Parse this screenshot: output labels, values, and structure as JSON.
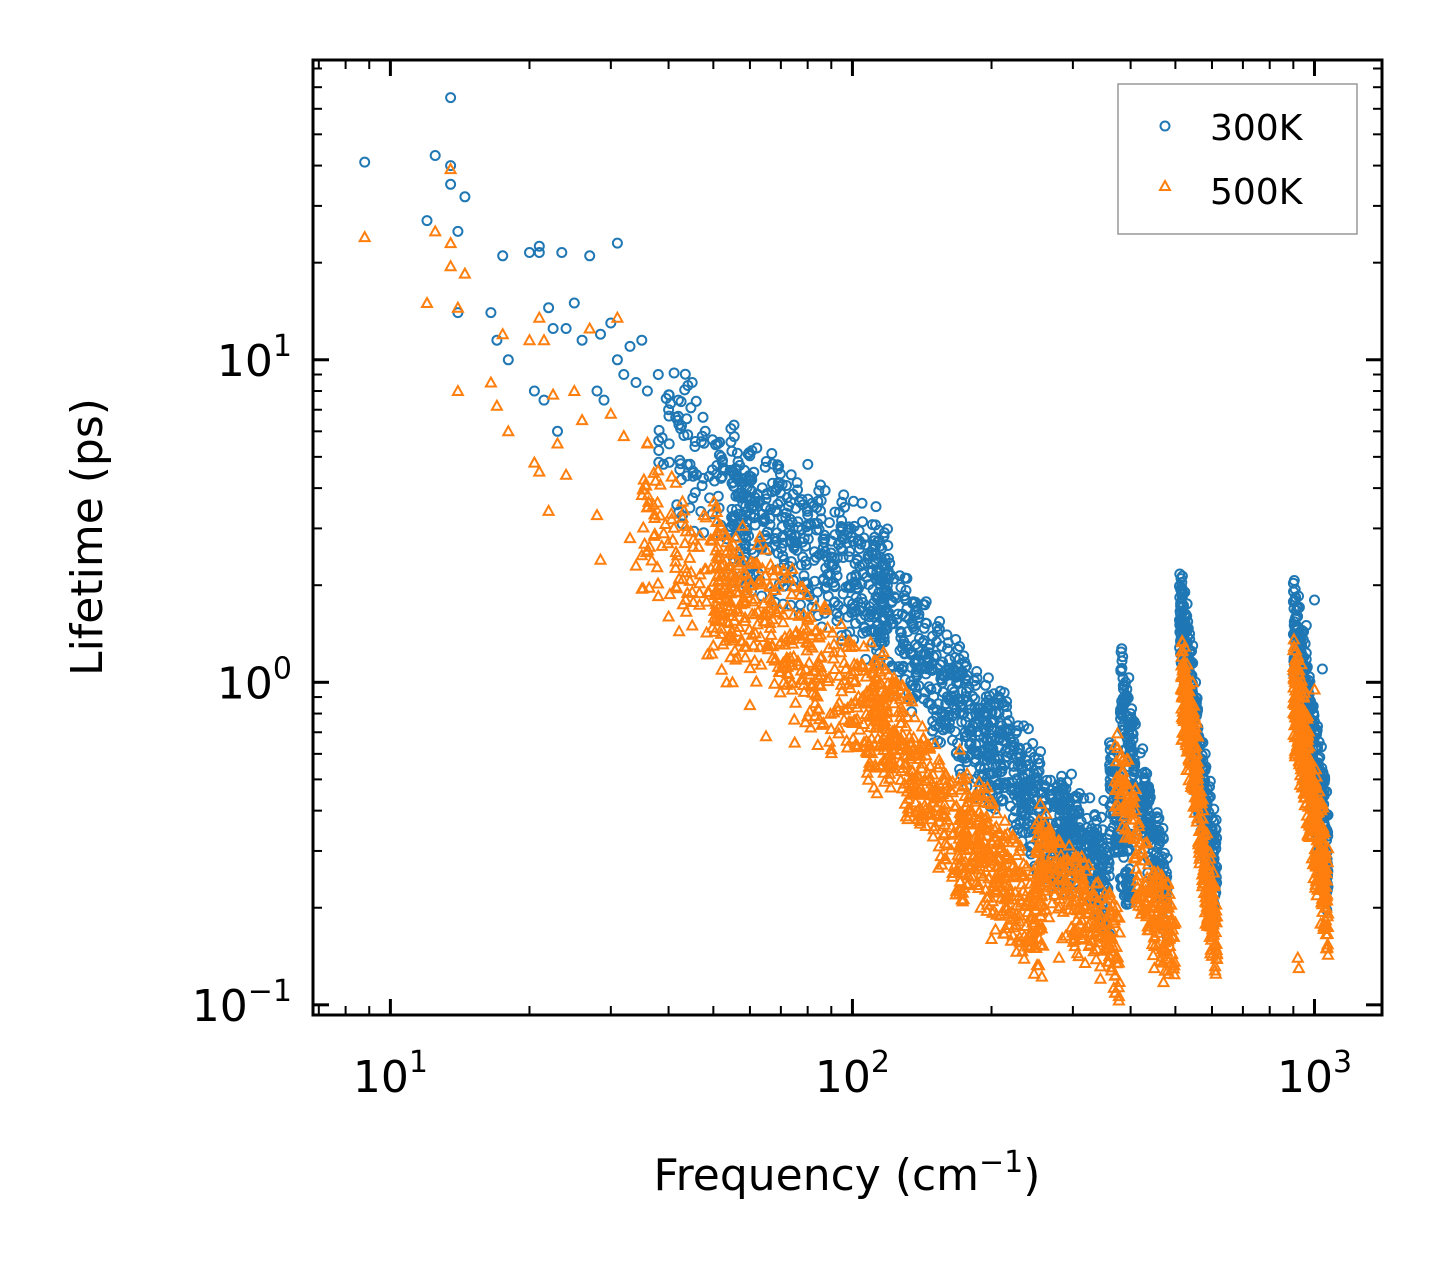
{
  "chart_data": {
    "type": "scatter",
    "title": "",
    "xlabel_text": "Frequency (cm",
    "xlabel_sup": "−1",
    "xlabel_close": ")",
    "ylabel": "Lifetime (ps)",
    "xscale": "log",
    "yscale": "log",
    "xlim": [
      6.8,
      1400
    ],
    "ylim": [
      0.093,
      85
    ],
    "x_ticks": [
      {
        "value": 10,
        "base": "10",
        "exp": "1"
      },
      {
        "value": 100,
        "base": "10",
        "exp": "2"
      },
      {
        "value": 1000,
        "base": "10",
        "exp": "3"
      }
    ],
    "y_ticks": [
      {
        "value": 0.1,
        "base": "10",
        "exp": "−1"
      },
      {
        "value": 1,
        "base": "10",
        "exp": "0"
      },
      {
        "value": 10,
        "base": "10",
        "exp": "1"
      }
    ],
    "legend_position": "top-right",
    "series": [
      {
        "name": "300K",
        "marker": "circle",
        "color": "#1f77b4",
        "points": [
          [
            8.8,
            41
          ],
          [
            12,
            27
          ],
          [
            12.5,
            43
          ],
          [
            13.5,
            65
          ],
          [
            13.5,
            40
          ],
          [
            13.5,
            35
          ],
          [
            14,
            25
          ],
          [
            14,
            14
          ],
          [
            14.5,
            32
          ],
          [
            16.5,
            14
          ],
          [
            17,
            11.5
          ],
          [
            17.5,
            21
          ],
          [
            18,
            10
          ],
          [
            20,
            21.5
          ],
          [
            20.5,
            8
          ],
          [
            21,
            22.5
          ],
          [
            21,
            21.5
          ],
          [
            21.5,
            7.5
          ],
          [
            22,
            14.5
          ],
          [
            22.5,
            12.5
          ],
          [
            23,
            6
          ],
          [
            23.5,
            21.5
          ],
          [
            24,
            12.5
          ],
          [
            25,
            15
          ],
          [
            26,
            11.5
          ],
          [
            27,
            21
          ],
          [
            28,
            8
          ],
          [
            28.5,
            12
          ],
          [
            29,
            7.5
          ],
          [
            30,
            13
          ],
          [
            31,
            23
          ],
          [
            31,
            10
          ],
          [
            32,
            9
          ],
          [
            33,
            11
          ],
          [
            34,
            8.5
          ],
          [
            35,
            11.5
          ],
          [
            36,
            8
          ],
          [
            38,
            9
          ],
          [
            40,
            7
          ],
          [
            42,
            7.5
          ],
          [
            45,
            8.5
          ],
          [
            48,
            6
          ],
          [
            52,
            5
          ],
          [
            55,
            4.5
          ],
          [
            60,
            4.2
          ],
          [
            65,
            3.7
          ],
          [
            80,
            3.3
          ],
          [
            95,
            2.8
          ],
          [
            110,
            2.2
          ],
          [
            130,
            1.6
          ],
          [
            150,
            1.2
          ],
          [
            170,
            1.0
          ],
          [
            200,
            0.75
          ],
          [
            230,
            0.6
          ],
          [
            260,
            0.48
          ],
          [
            290,
            0.36
          ],
          [
            320,
            0.33
          ],
          [
            350,
            0.43
          ],
          [
            390,
            1.0
          ],
          [
            400,
            0.8
          ],
          [
            430,
            0.5
          ],
          [
            470,
            0.33
          ],
          [
            530,
            1.75
          ],
          [
            545,
            1.3
          ],
          [
            580,
            0.6
          ],
          [
            600,
            0.38
          ],
          [
            920,
            1.3
          ],
          [
            960,
            1.5
          ],
          [
            1000,
            1.8
          ],
          [
            1040,
            1.1
          ]
        ],
        "bands": [
          [
            38,
            60,
            3.4,
            6.5,
            0.4,
            120
          ],
          [
            55,
            120,
            1.9,
            3.6,
            0.35,
            420
          ],
          [
            110,
            200,
            0.6,
            1.9,
            0.3,
            380
          ],
          [
            195,
            290,
            0.3,
            0.7,
            0.3,
            320
          ],
          [
            280,
            360,
            0.24,
            0.4,
            0.25,
            240
          ],
          [
            360,
            400,
            0.24,
            0.5,
            0.25,
            120
          ],
          [
            380,
            410,
            0.55,
            0.95,
            0.25,
            90
          ],
          [
            420,
            480,
            0.22,
            0.45,
            0.25,
            150
          ],
          [
            510,
            560,
            0.6,
            1.7,
            0.25,
            240
          ],
          [
            560,
            615,
            0.25,
            0.55,
            0.25,
            160
          ],
          [
            900,
            1070,
            0.28,
            1.5,
            0.3,
            420
          ]
        ]
      },
      {
        "name": "500K",
        "marker": "triangle",
        "color": "#ff7f0e",
        "points": [
          [
            8.8,
            24
          ],
          [
            12,
            15
          ],
          [
            12.5,
            25
          ],
          [
            13.5,
            39
          ],
          [
            13.5,
            23
          ],
          [
            13.5,
            19.5
          ],
          [
            14,
            8
          ],
          [
            14,
            14.5
          ],
          [
            14.5,
            18.5
          ],
          [
            16.5,
            8.5
          ],
          [
            17,
            7.2
          ],
          [
            17.5,
            12
          ],
          [
            18,
            6
          ],
          [
            20,
            11.5
          ],
          [
            20.5,
            4.8
          ],
          [
            21,
            13.5
          ],
          [
            21,
            4.5
          ],
          [
            21.5,
            11.5
          ],
          [
            22,
            3.4
          ],
          [
            22.5,
            7.8
          ],
          [
            23,
            5.5
          ],
          [
            24,
            4.4
          ],
          [
            25,
            8
          ],
          [
            26,
            6.5
          ],
          [
            27,
            12.5
          ],
          [
            28,
            3.3
          ],
          [
            28.5,
            2.4
          ],
          [
            30,
            6.8
          ],
          [
            31,
            13.5
          ],
          [
            32,
            5.8
          ],
          [
            33,
            2.8
          ],
          [
            34,
            2.3
          ],
          [
            35,
            1.95
          ],
          [
            36,
            5.5
          ],
          [
            38,
            1.85
          ],
          [
            40,
            1.6
          ],
          [
            45,
            1.5
          ],
          [
            50,
            1.3
          ],
          [
            55,
            1.0
          ],
          [
            60,
            0.85
          ],
          [
            65,
            0.68
          ],
          [
            75,
            0.65
          ],
          [
            90,
            0.62
          ],
          [
            110,
            0.55
          ],
          [
            130,
            0.42
          ],
          [
            150,
            0.35
          ],
          [
            170,
            0.22
          ],
          [
            200,
            0.16
          ],
          [
            250,
            0.15
          ],
          [
            280,
            0.14
          ],
          [
            340,
            0.17
          ],
          [
            380,
            0.5
          ],
          [
            390,
            0.35
          ],
          [
            450,
            0.13
          ],
          [
            500,
            0.18
          ],
          [
            530,
            0.75
          ],
          [
            545,
            1.0
          ],
          [
            560,
            0.45
          ],
          [
            590,
            0.2
          ],
          [
            920,
            0.14
          ],
          [
            925,
            0.13
          ],
          [
            1000,
            0.95
          ],
          [
            1040,
            0.42
          ]
        ],
        "bands": [
          [
            35,
            55,
            1.7,
            3.2,
            0.35,
            120
          ],
          [
            50,
            120,
            0.7,
            2.2,
            0.35,
            420
          ],
          [
            110,
            180,
            0.28,
            0.9,
            0.3,
            300
          ],
          [
            170,
            260,
            0.17,
            0.4,
            0.3,
            300
          ],
          [
            250,
            380,
            0.15,
            0.3,
            0.25,
            260
          ],
          [
            370,
            410,
            0.35,
            0.55,
            0.2,
            60
          ],
          [
            410,
            500,
            0.15,
            0.26,
            0.25,
            150
          ],
          [
            515,
            560,
            0.5,
            1.0,
            0.25,
            180
          ],
          [
            560,
            615,
            0.16,
            0.38,
            0.25,
            140
          ],
          [
            900,
            1070,
            0.2,
            1.0,
            0.3,
            380
          ]
        ]
      }
    ]
  }
}
